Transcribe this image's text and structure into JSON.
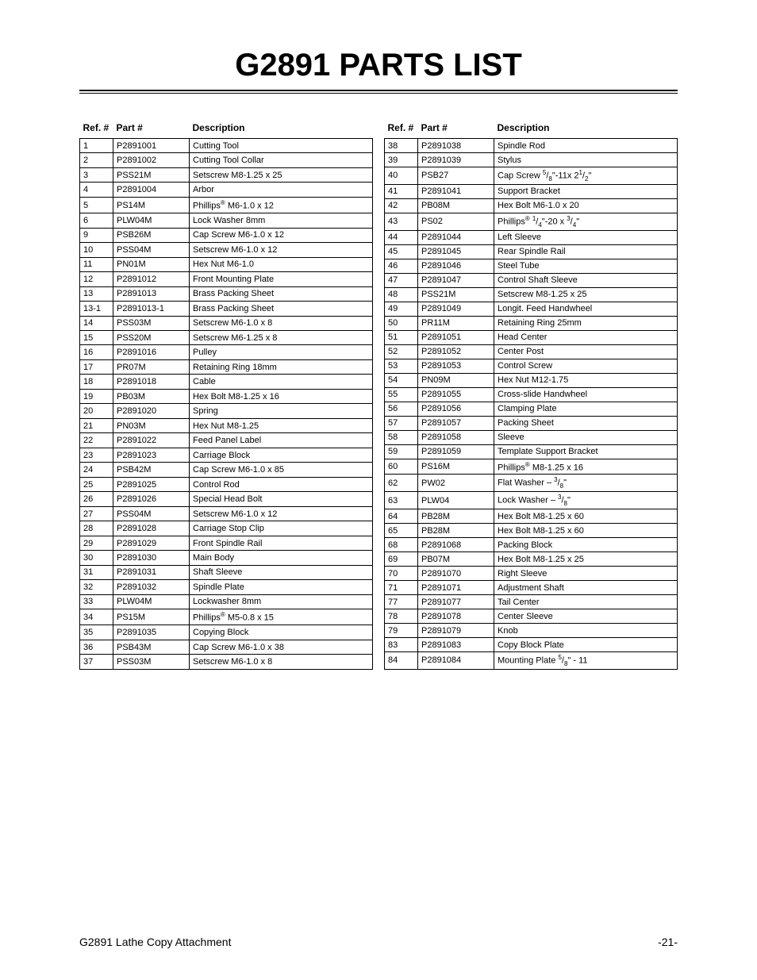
{
  "page_title": "G2891 PARTS LIST",
  "headers": {
    "ref": "Ref. #",
    "part": "Part #",
    "desc": "Description"
  },
  "footer_left": "G2891 Lathe Copy Attachment",
  "footer_right": "-21-",
  "title_fontsize": 40,
  "body_fontsize": 11,
  "left_rows": [
    {
      "ref": "1",
      "part": "P2891001",
      "desc": "Cutting Tool"
    },
    {
      "ref": "2",
      "part": "P2891002",
      "desc": "Cutting Tool Collar"
    },
    {
      "ref": "3",
      "part": "PSS21M",
      "desc": "Setscrew M8-1.25 x 25"
    },
    {
      "ref": "4",
      "part": "P2891004",
      "desc": "Arbor"
    },
    {
      "ref": "5",
      "part": "PS14M",
      "desc": "Phillips{reg} M6-1.0 x 12"
    },
    {
      "ref": "6",
      "part": "PLW04M",
      "desc": "Lock Washer 8mm"
    },
    {
      "ref": "9",
      "part": "PSB26M",
      "desc": "Cap Screw M6-1.0 x 12"
    },
    {
      "ref": "10",
      "part": "PSS04M",
      "desc": "Setscrew M6-1.0 x 12"
    },
    {
      "ref": "11",
      "part": "PN01M",
      "desc": "Hex Nut M6-1.0"
    },
    {
      "ref": "12",
      "part": "P2891012",
      "desc": "Front Mounting Plate"
    },
    {
      "ref": "13",
      "part": "P2891013",
      "desc": "Brass Packing Sheet"
    },
    {
      "ref": "13-1",
      "part": "P2891013-1",
      "desc": "Brass Packing Sheet"
    },
    {
      "ref": "14",
      "part": "PSS03M",
      "desc": "Setscrew M6-1.0 x 8"
    },
    {
      "ref": "15",
      "part": "PSS20M",
      "desc": "Setscrew M6-1.25 x 8"
    },
    {
      "ref": "16",
      "part": "P2891016",
      "desc": "Pulley"
    },
    {
      "ref": "17",
      "part": "PR07M",
      "desc": "Retaining Ring 18mm"
    },
    {
      "ref": "18",
      "part": "P2891018",
      "desc": "Cable"
    },
    {
      "ref": "19",
      "part": "PB03M",
      "desc": "Hex Bolt M8-1.25 x 16"
    },
    {
      "ref": "20",
      "part": "P2891020",
      "desc": "Spring"
    },
    {
      "ref": "21",
      "part": "PN03M",
      "desc": "Hex Nut M8-1.25"
    },
    {
      "ref": "22",
      "part": "P2891022",
      "desc": "Feed Panel Label"
    },
    {
      "ref": "23",
      "part": "P2891023",
      "desc": "Carriage Block"
    },
    {
      "ref": "24",
      "part": "PSB42M",
      "desc": "Cap Screw M6-1.0 x 85"
    },
    {
      "ref": "25",
      "part": "P2891025",
      "desc": "Control Rod"
    },
    {
      "ref": "26",
      "part": "P2891026",
      "desc": "Special Head Bolt"
    },
    {
      "ref": "27",
      "part": "PSS04M",
      "desc": "Setscrew M6-1.0 x 12"
    },
    {
      "ref": "28",
      "part": "P2891028",
      "desc": "Carriage Stop Clip"
    },
    {
      "ref": "29",
      "part": "P2891029",
      "desc": "Front Spindle Rail"
    },
    {
      "ref": "30",
      "part": "P2891030",
      "desc": "Main Body"
    },
    {
      "ref": "31",
      "part": "P2891031",
      "desc": "Shaft Sleeve"
    },
    {
      "ref": "32",
      "part": "P2891032",
      "desc": "Spindle Plate"
    },
    {
      "ref": "33",
      "part": "PLW04M",
      "desc": "Lockwasher 8mm"
    },
    {
      "ref": "34",
      "part": "PS15M",
      "desc": "Phillips{reg} M5-0.8 x 15"
    },
    {
      "ref": "35",
      "part": "P2891035",
      "desc": "Copying Block"
    },
    {
      "ref": "36",
      "part": "PSB43M",
      "desc": "Cap Screw M6-1.0 x 38"
    },
    {
      "ref": "37",
      "part": "PSS03M",
      "desc": "Setscrew M6-1.0 x 8"
    }
  ],
  "right_rows": [
    {
      "ref": "38",
      "part": "P2891038",
      "desc": "Spindle Rod"
    },
    {
      "ref": "39",
      "part": "P2891039",
      "desc": "Stylus"
    },
    {
      "ref": "40",
      "part": "PSB27",
      "desc": "Cap Screw {5/8}\"-11x 2{1/2}\""
    },
    {
      "ref": "41",
      "part": "P2891041",
      "desc": "Support Bracket"
    },
    {
      "ref": "42",
      "part": "PB08M",
      "desc": "Hex Bolt M6-1.0 x 20"
    },
    {
      "ref": "43",
      "part": "PS02",
      "desc": "Phillips{reg} {1/4}\"-20 x {3/4}\""
    },
    {
      "ref": "44",
      "part": "P2891044",
      "desc": "Left Sleeve"
    },
    {
      "ref": "45",
      "part": "P2891045",
      "desc": "Rear Spindle Rail"
    },
    {
      "ref": "46",
      "part": "P2891046",
      "desc": "Steel Tube"
    },
    {
      "ref": "47",
      "part": "P2891047",
      "desc": "Control Shaft Sleeve"
    },
    {
      "ref": "48",
      "part": "PSS21M",
      "desc": "Setscrew M8-1.25 x 25"
    },
    {
      "ref": "49",
      "part": "P2891049",
      "desc": "Longit. Feed Handwheel"
    },
    {
      "ref": "50",
      "part": "PR11M",
      "desc": "Retaining Ring 25mm"
    },
    {
      "ref": "51",
      "part": "P2891051",
      "desc": "Head Center"
    },
    {
      "ref": "52",
      "part": "P2891052",
      "desc": "Center Post"
    },
    {
      "ref": "53",
      "part": "P2891053",
      "desc": "Control Screw"
    },
    {
      "ref": "54",
      "part": "PN09M",
      "desc": "Hex Nut M12-1.75"
    },
    {
      "ref": "55",
      "part": "P2891055",
      "desc": "Cross-slide Handwheel"
    },
    {
      "ref": "56",
      "part": "P2891056",
      "desc": "Clamping Plate"
    },
    {
      "ref": "57",
      "part": "P2891057",
      "desc": "Packing Sheet"
    },
    {
      "ref": "58",
      "part": "P2891058",
      "desc": "Sleeve"
    },
    {
      "ref": "59",
      "part": "P2891059",
      "desc": "Template Support Bracket"
    },
    {
      "ref": "60",
      "part": "PS16M",
      "desc": "Phillips{reg} M8-1.25 x 16"
    },
    {
      "ref": "62",
      "part": "PW02",
      "desc": "Flat Washer – {3/8}\""
    },
    {
      "ref": "63",
      "part": "PLW04",
      "desc": "Lock Washer – {3/8}\""
    },
    {
      "ref": "64",
      "part": "PB28M",
      "desc": "Hex Bolt M8-1.25 x 60"
    },
    {
      "ref": "65",
      "part": "PB28M",
      "desc": "Hex Bolt M8-1.25 x 60"
    },
    {
      "ref": "68",
      "part": "P2891068",
      "desc": "Packing Block"
    },
    {
      "ref": "69",
      "part": "PB07M",
      "desc": "Hex Bolt M8-1.25 x 25"
    },
    {
      "ref": "70",
      "part": "P2891070",
      "desc": "Right Sleeve"
    },
    {
      "ref": "71",
      "part": "P2891071",
      "desc": "Adjustment Shaft"
    },
    {
      "ref": "77",
      "part": "P2891077",
      "desc": "Tail Center"
    },
    {
      "ref": "78",
      "part": "P2891078",
      "desc": "Center Sleeve"
    },
    {
      "ref": "79",
      "part": "P2891079",
      "desc": "Knob"
    },
    {
      "ref": "83",
      "part": "P2891083",
      "desc": "Copy Block Plate"
    },
    {
      "ref": "84",
      "part": "P2891084",
      "desc": "Mounting Plate {5/8}\" - 11"
    }
  ]
}
